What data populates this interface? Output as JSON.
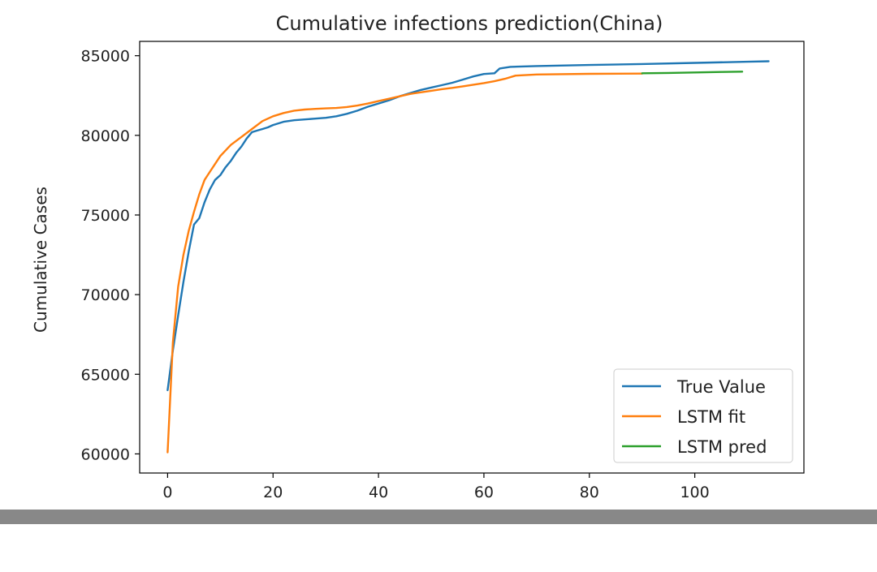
{
  "chart_data": {
    "type": "line",
    "title": "Cumulative infections prediction(China)",
    "xlabel": "",
    "ylabel": "Cumulative Cases",
    "xlim": [
      -5.3,
      120.7
    ],
    "ylim": [
      58800,
      85900
    ],
    "xticks": [
      0,
      20,
      40,
      60,
      80,
      100
    ],
    "yticks": [
      60000,
      65000,
      70000,
      75000,
      80000,
      85000
    ],
    "grid": false,
    "legend_position": "lower-right",
    "series": [
      {
        "name": "True Value",
        "color": "#1f77b4",
        "x": [
          0,
          1,
          2,
          3,
          4,
          5,
          6,
          7,
          8,
          9,
          10,
          11,
          12,
          13,
          14,
          15,
          16,
          17,
          18,
          19,
          20,
          22,
          24,
          26,
          28,
          30,
          32,
          34,
          36,
          38,
          40,
          42,
          44,
          46,
          48,
          50,
          52,
          54,
          56,
          58,
          60,
          62,
          63,
          65,
          70,
          80,
          90,
          100,
          110,
          114
        ],
        "y": [
          64000,
          66500,
          68700,
          70800,
          72700,
          74400,
          74800,
          75800,
          76600,
          77200,
          77500,
          78000,
          78400,
          78900,
          79300,
          79800,
          80200,
          80300,
          80400,
          80500,
          80650,
          80850,
          80950,
          81000,
          81050,
          81100,
          81200,
          81350,
          81550,
          81800,
          82000,
          82200,
          82450,
          82650,
          82850,
          83000,
          83150,
          83300,
          83500,
          83700,
          83850,
          83900,
          84200,
          84300,
          84350,
          84420,
          84480,
          84550,
          84620,
          84650
        ]
      },
      {
        "name": "LSTM fit",
        "color": "#ff7f0e",
        "x": [
          0,
          1,
          2,
          3,
          4,
          5,
          6,
          7,
          8,
          10,
          12,
          14,
          16,
          18,
          20,
          22,
          24,
          26,
          28,
          30,
          32,
          34,
          36,
          38,
          40,
          42,
          44,
          46,
          48,
          50,
          52,
          54,
          56,
          58,
          60,
          62,
          64,
          66,
          70,
          80,
          90
        ],
        "y": [
          60100,
          67000,
          70500,
          72500,
          74000,
          75200,
          76300,
          77200,
          77700,
          78700,
          79400,
          79900,
          80400,
          80900,
          81200,
          81400,
          81550,
          81620,
          81660,
          81690,
          81720,
          81780,
          81870,
          82000,
          82150,
          82300,
          82450,
          82600,
          82700,
          82800,
          82900,
          82980,
          83080,
          83180,
          83280,
          83400,
          83550,
          83750,
          83820,
          83860,
          83880
        ]
      },
      {
        "name": "LSTM pred",
        "color": "#2ca02c",
        "x": [
          90,
          95,
          100,
          105,
          109
        ],
        "y": [
          83900,
          83920,
          83950,
          83980,
          84000
        ]
      }
    ]
  }
}
